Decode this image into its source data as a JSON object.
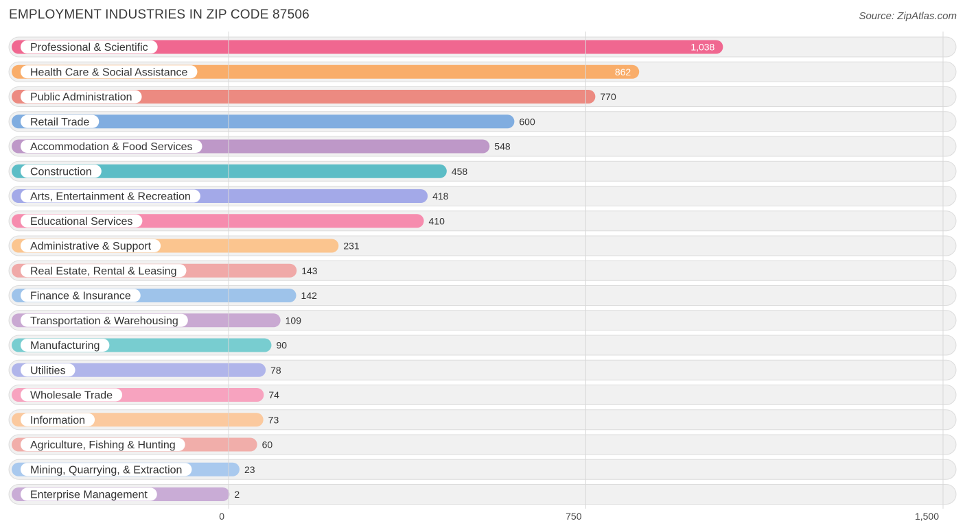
{
  "header": {
    "title": "EMPLOYMENT INDUSTRIES IN ZIP CODE 87506",
    "source": "Source: ZipAtlas.com"
  },
  "chart_data": {
    "type": "bar",
    "orientation": "horizontal",
    "title": "EMPLOYMENT INDUSTRIES IN ZIP CODE 87506",
    "xlabel": "",
    "ylabel": "",
    "xlim": [
      0,
      1500
    ],
    "ticks": [
      0,
      750,
      1500
    ],
    "tick_labels": [
      "0",
      "750",
      "1,500"
    ],
    "categories": [
      "Professional & Scientific",
      "Health Care & Social Assistance",
      "Public Administration",
      "Retail Trade",
      "Accommodation & Food Services",
      "Construction",
      "Arts, Entertainment & Recreation",
      "Educational Services",
      "Administrative & Support",
      "Real Estate, Rental & Leasing",
      "Finance & Insurance",
      "Transportation & Warehousing",
      "Manufacturing",
      "Utilities",
      "Wholesale Trade",
      "Information",
      "Agriculture, Fishing & Hunting",
      "Mining, Quarrying, & Extraction",
      "Enterprise Management"
    ],
    "values": [
      1038,
      862,
      770,
      600,
      548,
      458,
      418,
      410,
      231,
      143,
      142,
      109,
      90,
      78,
      74,
      73,
      60,
      23,
      2
    ],
    "value_labels": [
      "1,038",
      "862",
      "770",
      "600",
      "548",
      "458",
      "418",
      "410",
      "231",
      "143",
      "142",
      "109",
      "90",
      "78",
      "74",
      "73",
      "60",
      "23",
      "2"
    ],
    "colors": [
      "#f06790",
      "#f9ad6a",
      "#ec8a81",
      "#80ade0",
      "#be98c8",
      "#5cbdc6",
      "#a3a9e8",
      "#f68cae",
      "#fbc58f",
      "#f0a9a8",
      "#9ec3ea",
      "#c9a9d2",
      "#78cdd0",
      "#b0b5ea",
      "#f7a3bf",
      "#fbc99e",
      "#f1aeaa",
      "#a9c9ee",
      "#c9acd6"
    ]
  }
}
